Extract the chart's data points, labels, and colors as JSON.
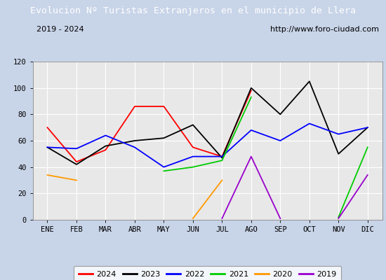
{
  "title": "Evolucion Nº Turistas Extranjeros en el municipio de Llera",
  "subtitle_left": "2019 - 2024",
  "subtitle_right": "http://www.foro-ciudad.com",
  "months": [
    "ENE",
    "FEB",
    "MAR",
    "ABR",
    "MAY",
    "JUN",
    "JUL",
    "AGO",
    "SEP",
    "OCT",
    "NOV",
    "DIC"
  ],
  "series": {
    "2024": {
      "color": "#ff0000",
      "data": [
        70,
        44,
        53,
        86,
        86,
        55,
        48,
        98,
        null,
        null,
        null,
        null
      ]
    },
    "2023": {
      "color": "#000000",
      "data": [
        55,
        42,
        56,
        60,
        62,
        72,
        47,
        100,
        80,
        105,
        50,
        70
      ]
    },
    "2022": {
      "color": "#0000ff",
      "data": [
        55,
        54,
        64,
        55,
        40,
        48,
        48,
        68,
        60,
        73,
        65,
        70
      ]
    },
    "2021": {
      "color": "#00cc00",
      "data": [
        null,
        null,
        1,
        null,
        37,
        40,
        45,
        93,
        null,
        null,
        2,
        55
      ]
    },
    "2020": {
      "color": "#ff9900",
      "data": [
        34,
        30,
        null,
        null,
        null,
        1,
        30,
        null,
        null,
        null,
        null,
        null
      ]
    },
    "2019": {
      "color": "#9900cc",
      "data": [
        null,
        null,
        null,
        null,
        null,
        null,
        1,
        48,
        1,
        null,
        1,
        34
      ]
    }
  },
  "ylim": [
    0,
    120
  ],
  "yticks": [
    0,
    20,
    40,
    60,
    80,
    100,
    120
  ],
  "title_bg_color": "#4472c4",
  "title_text_color": "#ffffff",
  "subtitle_bg_color": "#ffffff",
  "subtitle_border_color": "#aaaaaa",
  "plot_bg_color": "#e8e8e8",
  "outer_bg_color": "#c8d4e8",
  "grid_color": "#ffffff",
  "legend_entries": [
    "2024",
    "2023",
    "2022",
    "2021",
    "2020",
    "2019"
  ]
}
